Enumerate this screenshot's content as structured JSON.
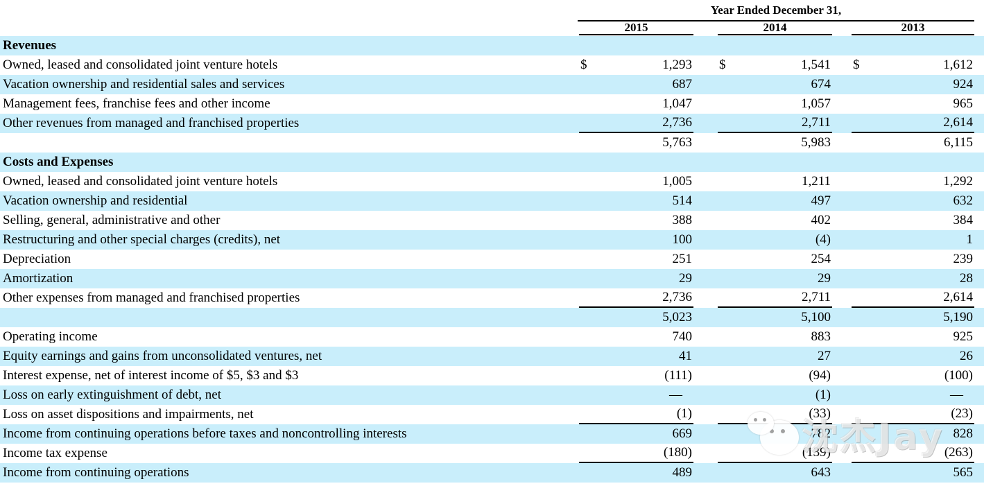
{
  "header": {
    "title": "Year Ended December 31,",
    "years": [
      "2015",
      "2014",
      "2013"
    ]
  },
  "watermark": {
    "text": "沈杰Jay",
    "icon": "wechat-chat-bubbles-icon"
  },
  "colors": {
    "row_highlight": "#c9eefb",
    "text": "#000000",
    "rule": "#000000"
  },
  "table": {
    "currency_symbol": "$",
    "rows": [
      {
        "label": "Revenues",
        "bold": true,
        "values": [
          "",
          "",
          ""
        ]
      },
      {
        "label": "Owned, leased and consolidated joint venture hotels",
        "dollar": true,
        "values": [
          "1,293",
          "1,541",
          "1,612"
        ]
      },
      {
        "label": "Vacation ownership and residential sales and services",
        "values": [
          "687",
          "674",
          "924"
        ]
      },
      {
        "label": "Management fees, franchise fees and other income",
        "values": [
          "1,047",
          "1,057",
          "965"
        ]
      },
      {
        "label": "Other revenues from managed and franchised properties",
        "underline": true,
        "values": [
          "2,736",
          "2,711",
          "2,614"
        ]
      },
      {
        "label": "",
        "values": [
          "5,763",
          "5,983",
          "6,115"
        ]
      },
      {
        "label": "Costs and Expenses",
        "bold": true,
        "values": [
          "",
          "",
          ""
        ]
      },
      {
        "label": "Owned, leased and consolidated joint venture hotels",
        "values": [
          "1,005",
          "1,211",
          "1,292"
        ]
      },
      {
        "label": "Vacation ownership and residential",
        "values": [
          "514",
          "497",
          "632"
        ]
      },
      {
        "label": "Selling, general, administrative and other",
        "values": [
          "388",
          "402",
          "384"
        ]
      },
      {
        "label": "Restructuring and other special charges (credits), net",
        "values": [
          "100",
          "(4)",
          "1"
        ]
      },
      {
        "label": "Depreciation",
        "values": [
          "251",
          "254",
          "239"
        ]
      },
      {
        "label": "Amortization",
        "values": [
          "29",
          "29",
          "28"
        ]
      },
      {
        "label": "Other expenses from managed and franchised properties",
        "underline": true,
        "values": [
          "2,736",
          "2,711",
          "2,614"
        ]
      },
      {
        "label": "",
        "values": [
          "5,023",
          "5,100",
          "5,190"
        ]
      },
      {
        "label": "Operating income",
        "values": [
          "740",
          "883",
          "925"
        ]
      },
      {
        "label": "Equity earnings and gains from unconsolidated ventures, net",
        "values": [
          "41",
          "27",
          "26"
        ]
      },
      {
        "label": "Interest expense, net of interest income of $5, $3 and $3",
        "values": [
          "(111)",
          "(94)",
          "(100)"
        ]
      },
      {
        "label": "Loss on early extinguishment of debt, net",
        "values": [
          "—",
          "(1)",
          "—"
        ]
      },
      {
        "label": "Loss on asset dispositions and impairments, net",
        "underline": true,
        "values": [
          "(1)",
          "(33)",
          "(23)"
        ]
      },
      {
        "label": "Income from continuing operations before taxes and noncontrolling interests",
        "values": [
          "669",
          "782",
          "828"
        ]
      },
      {
        "label": "Income tax expense",
        "underline": true,
        "values": [
          "(180)",
          "(139)",
          "(263)"
        ]
      },
      {
        "label": "Income from continuing operations",
        "values": [
          "489",
          "643",
          "565"
        ]
      }
    ]
  }
}
